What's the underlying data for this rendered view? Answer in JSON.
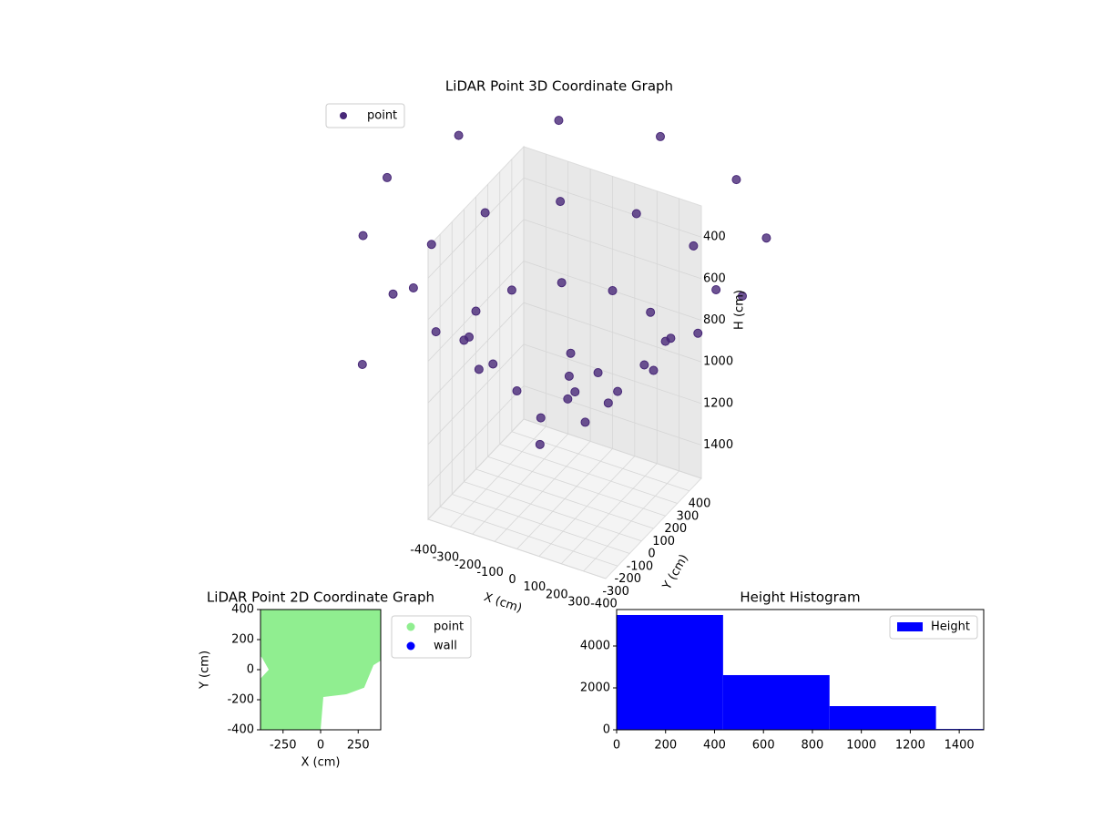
{
  "chart_data": [
    {
      "type": "scatter3d",
      "title": "LiDAR Point 3D Coordinate Graph",
      "xlabel": "X (cm)",
      "ylabel": "Y (cm)",
      "zlabel": "H (cm)",
      "xlim": [
        -400,
        400
      ],
      "ylim": [
        -400,
        400
      ],
      "zlim": [
        250,
        1560
      ],
      "xticks": [
        -400,
        -300,
        -200,
        -100,
        0,
        100,
        200,
        300
      ],
      "yticks": [
        -400,
        -300,
        -200,
        -100,
        0,
        100,
        200,
        300,
        400
      ],
      "zticks": [
        400,
        600,
        800,
        1000,
        1200,
        1400
      ],
      "legend": "upper left",
      "series": [
        {
          "name": "point",
          "color": "#482878",
          "x": [
            800,
            693,
            400,
            0,
            -400,
            -693,
            -800,
            -693,
            -400,
            0,
            400,
            693,
            600,
            520,
            300,
            0,
            -300,
            -520,
            -600,
            -520,
            -300,
            0,
            300,
            520,
            400,
            346,
            200,
            0,
            -200,
            -346,
            -400,
            -346,
            -200,
            0,
            200,
            346,
            100,
            200,
            0,
            150,
            50,
            250,
            -750
          ],
          "y": [
            0,
            400,
            693,
            800,
            693,
            400,
            0,
            -400,
            -693,
            -800,
            -693,
            -400,
            0,
            300,
            520,
            600,
            520,
            300,
            0,
            -300,
            -520,
            -600,
            -520,
            -300,
            0,
            200,
            346,
            400,
            346,
            200,
            0,
            -200,
            -346,
            -400,
            -346,
            -200,
            -100,
            -200,
            -200,
            0,
            -300,
            -100,
            -300
          ],
          "z": [
            300,
            300,
            300,
            300,
            300,
            300,
            300,
            300,
            300,
            300,
            300,
            300,
            550,
            550,
            550,
            550,
            550,
            550,
            550,
            550,
            550,
            550,
            550,
            550,
            800,
            800,
            800,
            800,
            800,
            800,
            800,
            800,
            800,
            800,
            800,
            800,
            950,
            1000,
            1050,
            900,
            1100,
            950,
            1000
          ]
        }
      ]
    },
    {
      "type": "scatter",
      "title": "LiDAR Point 2D Coordinate Graph",
      "xlabel": "X (cm)",
      "ylabel": "Y (cm)",
      "xlim": [
        -400,
        400
      ],
      "ylim": [
        -400,
        400
      ],
      "xticks": [
        -250,
        0,
        250
      ],
      "yticks": [
        -400,
        -200,
        0,
        200,
        400
      ],
      "legend": "outside right",
      "series": [
        {
          "name": "point",
          "color": "#90ee90",
          "x": [
            -400,
            400,
            400,
            352,
            290,
            170,
            18,
            0,
            -400,
            -400,
            -345,
            -390,
            -400
          ],
          "y": [
            400,
            400,
            60,
            30,
            -120,
            -164,
            -182,
            -400,
            -400,
            -60,
            0,
            80,
            90
          ]
        },
        {
          "name": "wall",
          "color": "#0000ff",
          "x": [],
          "y": []
        }
      ]
    },
    {
      "type": "histogram",
      "title": "Height Histogram",
      "label": "Height",
      "color": "#0000ff",
      "bins": [
        0,
        435,
        870,
        1305,
        1740
      ],
      "values": [
        5480,
        2610,
        1130,
        40
      ],
      "xlim": [
        0,
        1500
      ],
      "ylim": [
        0,
        5740
      ],
      "xticks": [
        0,
        200,
        400,
        600,
        800,
        1000,
        1200,
        1400
      ],
      "yticks": [
        0,
        2000,
        4000
      ],
      "legend": "upper right"
    }
  ]
}
